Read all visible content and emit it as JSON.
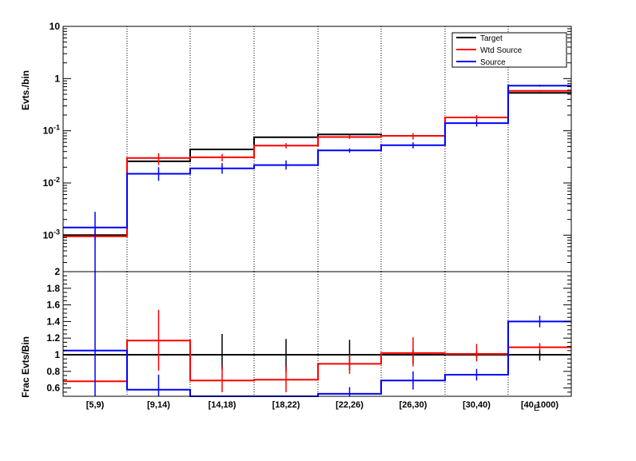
{
  "chart_data": [
    {
      "type": "step-histogram",
      "panel": "top",
      "ylabel": "Evts./bin",
      "yscale": "log",
      "ylim": [
        0.0002,
        10
      ],
      "y_tick_labels": [
        {
          "value": 10,
          "base": "10",
          "exp": ""
        },
        {
          "value": 1,
          "base": "1",
          "exp": ""
        },
        {
          "value": 0.1,
          "base": "10",
          "exp": "-1"
        },
        {
          "value": 0.01,
          "base": "10",
          "exp": "-2"
        },
        {
          "value": 0.001,
          "base": "10",
          "exp": "-3"
        }
      ],
      "categories": [
        "[5,9)",
        "[9,14)",
        "[14,18)",
        "[18,22)",
        "[22,26)",
        "[26,30)",
        "[30,40)",
        "[40,1000)"
      ],
      "legend": {
        "position": "top-right",
        "entries": [
          "Target",
          "Wtd Source",
          "Source"
        ]
      },
      "series": [
        {
          "name": "Target",
          "color": "#000000",
          "values": [
            0.001,
            0.026,
            0.044,
            0.075,
            0.085,
            0.08,
            0.18,
            0.53
          ],
          "err_low": [
            0.001,
            0.026,
            0.044,
            0.075,
            0.085,
            0.08,
            0.18,
            0.53
          ],
          "err_high": [
            0.001,
            0.026,
            0.044,
            0.075,
            0.085,
            0.08,
            0.18,
            0.53
          ]
        },
        {
          "name": "Wtd Source",
          "color": "#ff0000",
          "values": [
            0.00095,
            0.03,
            0.031,
            0.052,
            0.076,
            0.08,
            0.18,
            0.58
          ],
          "err_low": [
            0.0008,
            0.022,
            0.026,
            0.046,
            0.07,
            0.068,
            0.16,
            0.56
          ],
          "err_high": [
            0.0013,
            0.037,
            0.036,
            0.058,
            0.083,
            0.09,
            0.2,
            0.6
          ]
        },
        {
          "name": "Source",
          "color": "#0000ff",
          "values": [
            0.0014,
            0.015,
            0.019,
            0.022,
            0.042,
            0.053,
            0.14,
            0.73
          ],
          "err_low": [
            0.0001,
            0.011,
            0.015,
            0.018,
            0.038,
            0.046,
            0.12,
            0.7
          ],
          "err_high": [
            0.0028,
            0.02,
            0.024,
            0.027,
            0.046,
            0.06,
            0.16,
            0.76
          ]
        }
      ]
    },
    {
      "type": "step-histogram",
      "panel": "bottom",
      "ylabel": "Frac Evts/Bin",
      "xlabel": "E",
      "ylim": [
        0.5,
        2
      ],
      "y_tick_labels": [
        "2",
        "1.8",
        "1.6",
        "1.4",
        "1.2",
        "1",
        "0.8",
        "0.6"
      ],
      "categories": [
        "[5,9)",
        "[9,14)",
        "[14,18)",
        "[18,22)",
        "[22,26)",
        "[26,30)",
        "[30,40)",
        "[40,1000)"
      ],
      "series": [
        {
          "name": "Target",
          "color": "#000000",
          "values": [
            1,
            1,
            1,
            1,
            1,
            1,
            1,
            1
          ],
          "err_low": [
            1,
            1,
            0.82,
            0.8,
            0.82,
            0.9,
            0.96,
            0.93
          ],
          "err_high": [
            1,
            1,
            1.25,
            1.19,
            1.18,
            1.06,
            1.04,
            1.06
          ]
        },
        {
          "name": "Wtd Source",
          "color": "#ff0000",
          "values": [
            0.68,
            1.17,
            0.69,
            0.7,
            0.89,
            1.02,
            1.01,
            1.09
          ],
          "err_low": [
            0.68,
            0.81,
            0.55,
            0.55,
            0.77,
            0.86,
            0.92,
            1.05
          ],
          "err_high": [
            0.68,
            1.54,
            0.86,
            0.86,
            1.0,
            1.21,
            1.13,
            1.14
          ]
        },
        {
          "name": "Source",
          "color": "#0000ff",
          "values": [
            1.05,
            0.58,
            0.5,
            0.5,
            0.53,
            0.69,
            0.76,
            1.4
          ],
          "err_low": [
            0.5,
            0.5,
            0.5,
            0.5,
            0.45,
            0.58,
            0.69,
            1.33
          ],
          "err_high": [
            2.0,
            0.76,
            0.5,
            0.5,
            0.61,
            0.8,
            0.83,
            1.47
          ]
        }
      ]
    }
  ]
}
